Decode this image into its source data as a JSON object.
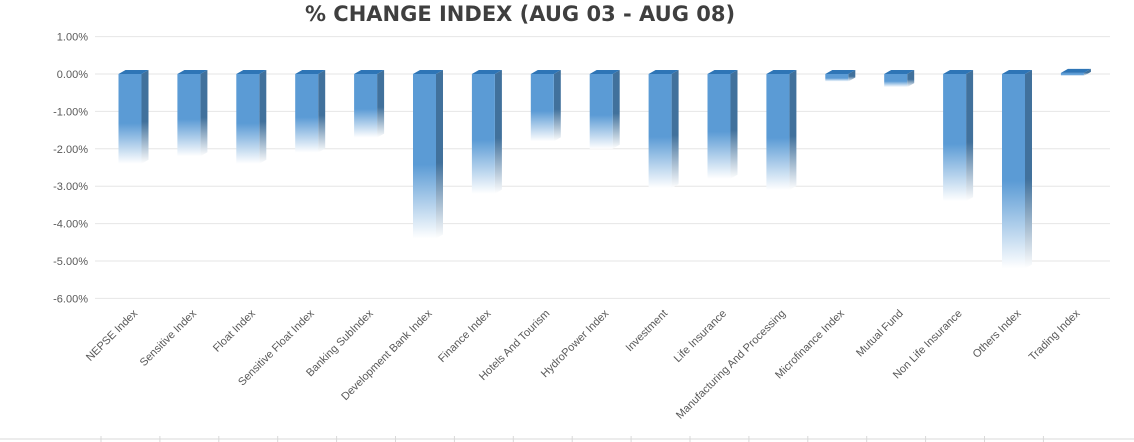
{
  "chart_data": {
    "type": "bar",
    "title": "% CHANGE INDEX (AUG 03 - AUG 08)",
    "xlabel": "",
    "ylabel": "",
    "ylim": [
      -6,
      1
    ],
    "ytick_values": [
      1,
      0,
      -1,
      -2,
      -3,
      -4,
      -5,
      -6
    ],
    "ytick_labels": [
      "1.00%",
      "0.00%",
      "-1.00%",
      "-2.00%",
      "-3.00%",
      "-4.00%",
      "-5.00%",
      "-6.00%"
    ],
    "grid": true,
    "legend": "none",
    "categories": [
      "NEPSE Index",
      "Sensitive Index",
      "Float Index",
      "Sensitive Float Index",
      "Banking SubIndex",
      "Development Bank Index",
      "Finance Index",
      "Hotels And Tourism",
      "HydroPower Index",
      "Investment",
      "Life Insurance",
      "Manufacturing And Processing",
      "Microfinance Index",
      "Mutual Fund",
      "Non Life Insurance",
      "Others Index",
      "Trading Index"
    ],
    "values": [
      -2.4,
      -2.2,
      -2.4,
      -2.1,
      -1.7,
      -4.4,
      -3.2,
      -1.8,
      -2.0,
      -3.05,
      -2.8,
      -3.1,
      -0.2,
      -0.35,
      -3.4,
      -5.2,
      0.03
    ],
    "colors": {
      "bar": "#5b9bd5",
      "bar_dark": "#41719c",
      "bar_top": "#2e75b6",
      "grid": "#e6e6e6",
      "text": "#595959"
    }
  }
}
